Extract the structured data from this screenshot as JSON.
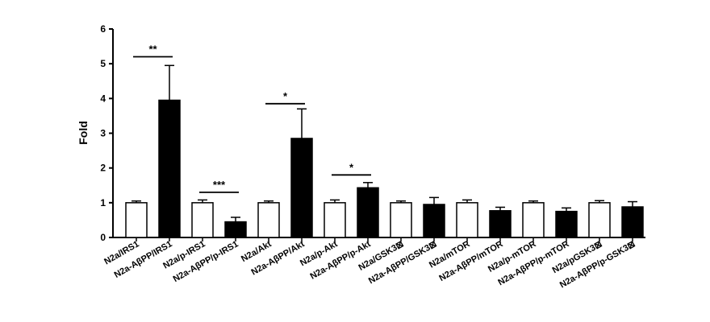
{
  "chart_data": {
    "type": "bar",
    "title": "",
    "xlabel": "",
    "ylabel": "Fold",
    "ylim": [
      0,
      6
    ],
    "yticks": [
      "0",
      "1",
      "2",
      "3",
      "4",
      "5",
      "6"
    ],
    "grid": false,
    "categories": [
      "N2a/IRS1",
      "N2a-AβPP/IRS1",
      "N2a/p-IRS1",
      "N2a-AβPP/p-IRS1",
      "N2a/Akt",
      "N2a-AβPP/Akt",
      "N2a/p-Akt",
      "N2a-AβPP/p-Akt",
      "N2a/GSK3⊠",
      "N2a-AβPP/GSK3⊠",
      "N2a/mTOR",
      "N2a-AβPP/mTOR",
      "N2a/p-mTOR",
      "N2a-AβPP/p-mTOR",
      "N2a/pGSK3⊠",
      "N2a-AβPP/p-GSK3⊠"
    ],
    "values": [
      1.0,
      3.95,
      1.0,
      0.45,
      1.0,
      2.85,
      1.0,
      1.43,
      1.0,
      0.95,
      1.0,
      0.77,
      1.0,
      0.75,
      1.0,
      0.88
    ],
    "errors": [
      0.05,
      1.0,
      0.08,
      0.13,
      0.05,
      0.85,
      0.08,
      0.15,
      0.05,
      0.2,
      0.08,
      0.1,
      0.05,
      0.1,
      0.06,
      0.15
    ],
    "fills": [
      "#ffffff",
      "#000000",
      "#ffffff",
      "#000000",
      "#ffffff",
      "#000000",
      "#ffffff",
      "#000000",
      "#ffffff",
      "#000000",
      "#ffffff",
      "#000000",
      "#ffffff",
      "#000000",
      "#ffffff",
      "#000000"
    ],
    "significance": [
      {
        "label": "**",
        "from": 0,
        "to": 1,
        "y": 5.2
      },
      {
        "label": "***",
        "from": 2,
        "to": 3,
        "y": 1.3
      },
      {
        "label": "*",
        "from": 4,
        "to": 5,
        "y": 3.85
      },
      {
        "label": "*",
        "from": 6,
        "to": 7,
        "y": 1.8
      }
    ]
  }
}
